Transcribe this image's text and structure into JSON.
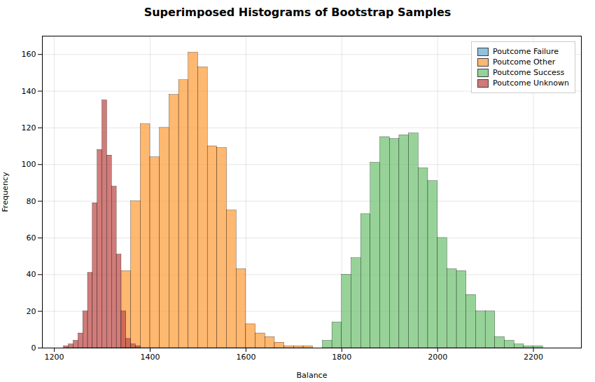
{
  "chart_data": {
    "type": "histogram",
    "title": "Superimposed Histograms of Bootstrap Samples",
    "xlabel": "Balance",
    "ylabel": "Frequency",
    "xlim": [
      1175,
      2300
    ],
    "xticks": [
      1200,
      1400,
      1600,
      1800,
      2000,
      2200
    ],
    "ylim": [
      0,
      170
    ],
    "yticks": [
      0,
      20,
      40,
      60,
      80,
      100,
      120,
      140,
      160
    ],
    "grid": true,
    "legend": "upper right",
    "series": [
      {
        "name": "Poutcome Failure",
        "color": "#6baed6",
        "bins": [
          1440,
          1460
        ],
        "values": [
          0
        ]
      },
      {
        "name": "Poutcome Other",
        "color": "#ffa040",
        "bins": [
          1340,
          1360,
          1380,
          1400,
          1420,
          1440,
          1460,
          1480,
          1500,
          1520,
          1540,
          1560,
          1580,
          1600,
          1620,
          1640,
          1660,
          1680,
          1700,
          1720,
          1740
        ],
        "values": [
          42,
          80,
          122,
          104,
          120,
          138,
          146,
          161,
          153,
          110,
          109,
          75,
          43,
          13,
          8,
          6,
          3,
          1,
          1,
          1
        ]
      },
      {
        "name": "Poutcome Success",
        "color": "#74c476",
        "bins": [
          1760,
          1780,
          1800,
          1820,
          1840,
          1860,
          1880,
          1900,
          1920,
          1940,
          1960,
          1980,
          2000,
          2020,
          2040,
          2060,
          2080,
          2100,
          2120,
          2140,
          2160,
          2180,
          2200,
          2220,
          2240
        ],
        "values": [
          4,
          14,
          40,
          49,
          73,
          101,
          115,
          114,
          116,
          117,
          98,
          91,
          60,
          43,
          42,
          29,
          20,
          20,
          6,
          4,
          2,
          1,
          1,
          0
        ]
      },
      {
        "name": "Poutcome Unknown",
        "color": "#c0504d",
        "bins": [
          1220,
          1230,
          1240,
          1250,
          1260,
          1270,
          1280,
          1290,
          1300,
          1310,
          1320,
          1330,
          1340,
          1350,
          1360,
          1370,
          1380
        ],
        "values": [
          1,
          2,
          4,
          8,
          20,
          41,
          79,
          108,
          135,
          105,
          88,
          51,
          20,
          5,
          2,
          1
        ]
      }
    ]
  }
}
